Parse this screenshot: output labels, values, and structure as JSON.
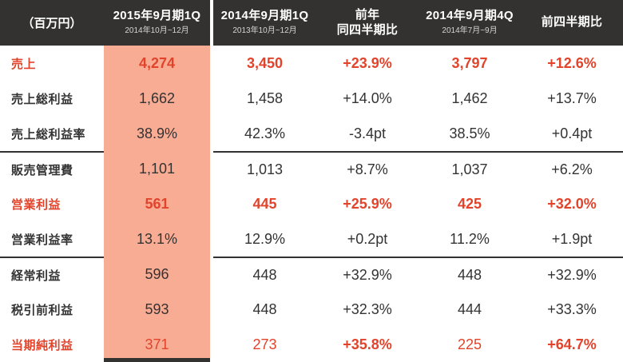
{
  "chart_data": {
    "type": "table",
    "unit_label": "（百万円）",
    "columns": [
      {
        "title": "2015年9月期1Q",
        "subtitle": "2014年10月~12月",
        "highlight": true
      },
      {
        "title": "2014年9月期1Q",
        "subtitle": "2013年10月~12月"
      },
      {
        "title_line1": "前年",
        "title_line2": "同四半期比"
      },
      {
        "title": "2014年9月期4Q",
        "subtitle": "2014年7月~9月"
      },
      {
        "title": "前四半期比"
      }
    ],
    "rows": [
      {
        "label": "売上",
        "values": [
          "4,274",
          "3,450",
          "+23.9%",
          "3,797",
          "+12.6%"
        ],
        "emphasis": "red"
      },
      {
        "label": "売上総利益",
        "values": [
          "1,662",
          "1,458",
          "+14.0%",
          "1,462",
          "+13.7%"
        ]
      },
      {
        "label": "売上総利益率",
        "values": [
          "38.9%",
          "42.3%",
          "-3.4pt",
          "38.5%",
          "+0.4pt"
        ]
      },
      {
        "label": "販売管理費",
        "values": [
          "1,101",
          "1,013",
          "+8.7%",
          "1,037",
          "+6.2%"
        ],
        "group_start": true
      },
      {
        "label": "営業利益",
        "values": [
          "561",
          "445",
          "+25.9%",
          "425",
          "+32.0%"
        ],
        "emphasis": "red"
      },
      {
        "label": "営業利益率",
        "values": [
          "13.1%",
          "12.9%",
          "+0.2pt",
          "11.2%",
          "+1.9pt"
        ]
      },
      {
        "label": "経常利益",
        "values": [
          "596",
          "448",
          "+32.9%",
          "448",
          "+32.9%"
        ],
        "group_start": true
      },
      {
        "label": "税引前利益",
        "values": [
          "593",
          "448",
          "+32.3%",
          "444",
          "+33.3%"
        ]
      },
      {
        "label": "当期純利益",
        "values": [
          "371",
          "273",
          "+35.8%",
          "225",
          "+64.7%"
        ],
        "emphasis": "red"
      }
    ],
    "colors": {
      "header_bg": "#333231",
      "highlight_column_bg": "#F9AC94",
      "accent_red": "#E2432B",
      "text_dark": "#333333"
    }
  }
}
